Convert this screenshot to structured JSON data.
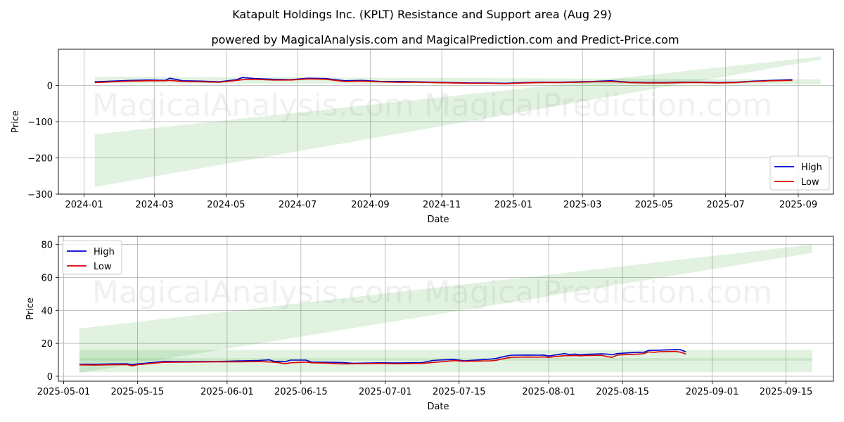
{
  "title": "Katapult Holdings Inc. (KPLT) Resistance and Support area (Aug 29)",
  "subtitle": "powered by MagicalAnalysis.com and MagicalPrediction.com and Predict-Price.com",
  "watermarks": [
    "MagicalAnalysis.com",
    "MagicalPrediction.com"
  ],
  "colors": {
    "high": "#0000cc",
    "low": "#dd0000",
    "band": "#2ca02c",
    "grid": "#b0b0b0"
  },
  "chart_data": [
    {
      "type": "line",
      "xlabel": "Date",
      "ylabel": "Price",
      "x_ticks": [
        "2024-01",
        "2024-03",
        "2024-05",
        "2024-07",
        "2024-09",
        "2024-11",
        "2025-01",
        "2025-03",
        "2025-05",
        "2025-07",
        "2025-09"
      ],
      "y_ticks": [
        "−300",
        "−200",
        "−100",
        "0"
      ],
      "ylim": [
        -300,
        100
      ],
      "xlim": [
        "2023-12-10",
        "2025-10-01"
      ],
      "legend": {
        "position": "lower-right",
        "entries": [
          "High",
          "Low"
        ]
      },
      "grid": true,
      "bands": [
        {
          "kind": "resistance-support",
          "start": "2024-01-10",
          "end": "2025-09-20",
          "lower_start": -280,
          "lower_end": 71,
          "upper_start": -135,
          "upper_end": 80
        },
        {
          "kind": "resistance-support",
          "start": "2024-01-10",
          "end": "2025-09-20",
          "lower_start": 6,
          "lower_end": 3,
          "upper_start": 24,
          "upper_end": 17
        }
      ],
      "x": [
        "2024-01-10",
        "2024-01-25",
        "2024-02-10",
        "2024-02-25",
        "2024-03-10",
        "2024-03-14",
        "2024-03-25",
        "2024-04-10",
        "2024-04-25",
        "2024-05-10",
        "2024-05-15",
        "2024-05-25",
        "2024-06-10",
        "2024-06-25",
        "2024-07-10",
        "2024-07-25",
        "2024-08-10",
        "2024-08-25",
        "2024-09-10",
        "2024-09-25",
        "2024-10-10",
        "2024-10-25",
        "2024-11-10",
        "2024-11-25",
        "2024-12-10",
        "2024-12-25",
        "2025-01-10",
        "2025-01-25",
        "2025-02-10",
        "2025-02-25",
        "2025-03-10",
        "2025-03-25",
        "2025-04-10",
        "2025-04-25",
        "2025-05-10",
        "2025-05-25",
        "2025-06-10",
        "2025-06-25",
        "2025-07-10",
        "2025-07-25",
        "2025-08-10",
        "2025-08-27"
      ],
      "series": [
        {
          "name": "High",
          "values": [
            10,
            12,
            14,
            15,
            14,
            20,
            13,
            12,
            10,
            16,
            22,
            19,
            17,
            16,
            20,
            19,
            13,
            14,
            11,
            11,
            10,
            9,
            8,
            7,
            7,
            6,
            8,
            9,
            9,
            10,
            11,
            13,
            9,
            8,
            8,
            9,
            9,
            8,
            9,
            12,
            14,
            16
          ]
        },
        {
          "name": "Low",
          "values": [
            8,
            10,
            12,
            13,
            13,
            14,
            11,
            10,
            9,
            14,
            16,
            17,
            15,
            15,
            18,
            17,
            11,
            12,
            10,
            9,
            9,
            8,
            7,
            6,
            6,
            5,
            7,
            8,
            8,
            9,
            10,
            11,
            8,
            7,
            7,
            8,
            8,
            7,
            8,
            11,
            13,
            14
          ]
        }
      ]
    },
    {
      "type": "line",
      "xlabel": "Date",
      "ylabel": "Price",
      "x_ticks": [
        "2025-05-01",
        "2025-05-15",
        "2025-06-01",
        "2025-06-15",
        "2025-07-01",
        "2025-07-15",
        "2025-08-01",
        "2025-08-15",
        "2025-09-01",
        "2025-09-15"
      ],
      "y_ticks": [
        "0",
        "20",
        "40",
        "60",
        "80"
      ],
      "ylim": [
        -3,
        85
      ],
      "xlim": [
        "2025-04-30",
        "2025-09-24"
      ],
      "legend": {
        "position": "upper-left",
        "entries": [
          "High",
          "Low"
        ]
      },
      "grid": true,
      "bands": [
        {
          "kind": "resistance-support",
          "start": "2025-05-04",
          "end": "2025-09-20",
          "lower_start": 2,
          "lower_end": 75,
          "upper_start": 29,
          "upper_end": 80
        },
        {
          "kind": "resistance-support",
          "start": "2025-05-04",
          "end": "2025-09-20",
          "lower_start": 9.5,
          "lower_end": 9.5,
          "upper_start": 16,
          "upper_end": 16
        },
        {
          "kind": "resistance-support",
          "start": "2025-05-04",
          "end": "2025-09-20",
          "lower_start": 2.5,
          "lower_end": 2.5,
          "upper_start": 11,
          "upper_end": 11
        }
      ],
      "x": [
        "2025-05-04",
        "2025-05-07",
        "2025-05-10",
        "2025-05-13",
        "2025-05-14",
        "2025-05-15",
        "2025-05-20",
        "2025-05-25",
        "2025-05-30",
        "2025-06-03",
        "2025-06-07",
        "2025-06-09",
        "2025-06-10",
        "2025-06-11",
        "2025-06-12",
        "2025-06-13",
        "2025-06-16",
        "2025-06-17",
        "2025-06-20",
        "2025-06-23",
        "2025-06-25",
        "2025-06-30",
        "2025-07-03",
        "2025-07-08",
        "2025-07-10",
        "2025-07-11",
        "2025-07-14",
        "2025-07-16",
        "2025-07-18",
        "2025-07-21",
        "2025-07-22",
        "2025-07-24",
        "2025-07-25",
        "2025-07-28",
        "2025-07-30",
        "2025-07-31",
        "2025-08-01",
        "2025-08-04",
        "2025-08-05",
        "2025-08-06",
        "2025-08-07",
        "2025-08-08",
        "2025-08-11",
        "2025-08-12",
        "2025-08-13",
        "2025-08-14",
        "2025-08-18",
        "2025-08-19",
        "2025-08-20",
        "2025-08-21",
        "2025-08-22",
        "2025-08-25",
        "2025-08-26",
        "2025-08-27"
      ],
      "series": [
        {
          "name": "High",
          "values": [
            7.2,
            7.3,
            7.5,
            7.6,
            7.0,
            7.5,
            9.0,
            8.9,
            8.9,
            9.3,
            9.6,
            10.0,
            9.0,
            9.1,
            8.8,
            9.8,
            9.8,
            8.6,
            8.5,
            8.3,
            7.9,
            8.2,
            8.1,
            8.3,
            9.6,
            9.8,
            10.2,
            9.4,
            9.8,
            10.4,
            10.8,
            12.3,
            12.8,
            12.9,
            12.8,
            12.9,
            12.3,
            13.8,
            13.2,
            13.5,
            13.0,
            13.3,
            13.6,
            13.5,
            13.0,
            13.8,
            14.6,
            14.5,
            15.8,
            15.7,
            15.9,
            16.2,
            16.1,
            14.8
          ]
        },
        {
          "name": "Low",
          "values": [
            6.9,
            6.8,
            7.0,
            7.1,
            6.3,
            7.0,
            8.5,
            8.6,
            8.8,
            8.8,
            8.9,
            8.7,
            8.5,
            8.2,
            7.6,
            8.2,
            8.6,
            8.2,
            8.0,
            7.5,
            7.6,
            7.8,
            7.6,
            7.8,
            8.4,
            8.6,
            9.5,
            9.1,
            9.2,
            9.4,
            9.7,
            11.0,
            11.5,
            11.7,
            11.6,
            11.8,
            11.5,
            12.5,
            12.5,
            12.6,
            12.4,
            12.6,
            12.7,
            12.0,
            11.5,
            12.9,
            13.5,
            13.7,
            14.8,
            14.5,
            14.9,
            15.1,
            14.6,
            13.5
          ]
        }
      ]
    }
  ]
}
